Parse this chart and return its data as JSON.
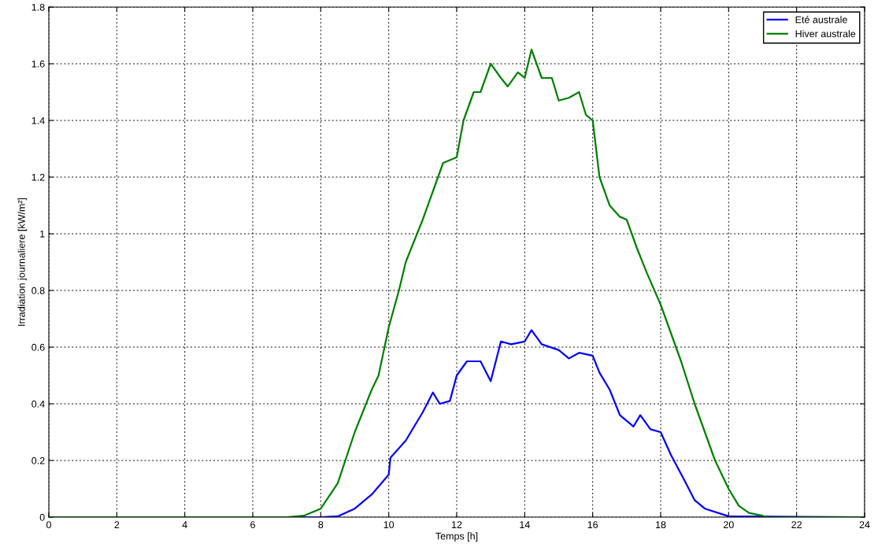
{
  "chart_data": {
    "type": "line",
    "xlabel": "Temps [h]",
    "ylabel": "Irradiation journaliere [kW/m²]",
    "xlim": [
      0,
      24
    ],
    "xticks": [
      0,
      2,
      4,
      6,
      8,
      10,
      12,
      14,
      16,
      18,
      20,
      22,
      24
    ],
    "ylim": [
      0,
      1.8
    ],
    "yticks": [
      0,
      0.2,
      0.4,
      0.6,
      0.8,
      1,
      1.2,
      1.4,
      1.6,
      1.8
    ],
    "grid": true,
    "legend": "top right",
    "line_style": "solid",
    "marker": "none",
    "series": [
      {
        "name": "Eté australe",
        "color": "#0000ff",
        "x": [
          0,
          8,
          8.5,
          9,
          9.5,
          10,
          10.05,
          10.5,
          11,
          11.3,
          11.5,
          11.8,
          12,
          12.3,
          12.7,
          13,
          13.3,
          13.6,
          14,
          14.2,
          14.5,
          15,
          15.3,
          15.6,
          16,
          16.2,
          16.5,
          16.8,
          17.2,
          17.4,
          17.7,
          18,
          18.3,
          18.7,
          19,
          19.3,
          20,
          24
        ],
        "values": [
          0,
          0,
          0.003,
          0.03,
          0.08,
          0.15,
          0.21,
          0.27,
          0.37,
          0.44,
          0.4,
          0.41,
          0.5,
          0.55,
          0.55,
          0.48,
          0.62,
          0.61,
          0.62,
          0.66,
          0.61,
          0.59,
          0.56,
          0.58,
          0.57,
          0.51,
          0.45,
          0.36,
          0.32,
          0.36,
          0.31,
          0.3,
          0.22,
          0.13,
          0.06,
          0.03,
          0.003,
          0
        ]
      },
      {
        "name": "Hiver australe",
        "color": "#008000",
        "x": [
          0,
          7,
          7.5,
          8,
          8.5,
          9,
          9.5,
          9.7,
          10,
          10.3,
          10.5,
          11,
          11.3,
          11.6,
          12,
          12.2,
          12.5,
          12.7,
          13,
          13.3,
          13.5,
          13.8,
          14,
          14.2,
          14.5,
          14.8,
          15,
          15.3,
          15.6,
          15.8,
          16,
          16.2,
          16.5,
          16.8,
          17,
          17.3,
          17.6,
          18,
          18.3,
          18.6,
          19,
          19.3,
          19.6,
          20,
          20.3,
          20.6,
          21,
          21.1,
          24
        ],
        "values": [
          0,
          0,
          0.005,
          0.03,
          0.12,
          0.3,
          0.45,
          0.5,
          0.67,
          0.8,
          0.9,
          1.05,
          1.15,
          1.25,
          1.27,
          1.4,
          1.5,
          1.5,
          1.6,
          1.55,
          1.52,
          1.57,
          1.55,
          1.65,
          1.55,
          1.55,
          1.47,
          1.48,
          1.5,
          1.42,
          1.4,
          1.2,
          1.1,
          1.06,
          1.05,
          0.95,
          0.86,
          0.75,
          0.65,
          0.55,
          0.4,
          0.3,
          0.2,
          0.1,
          0.04,
          0.015,
          0.005,
          0,
          0
        ]
      }
    ]
  }
}
